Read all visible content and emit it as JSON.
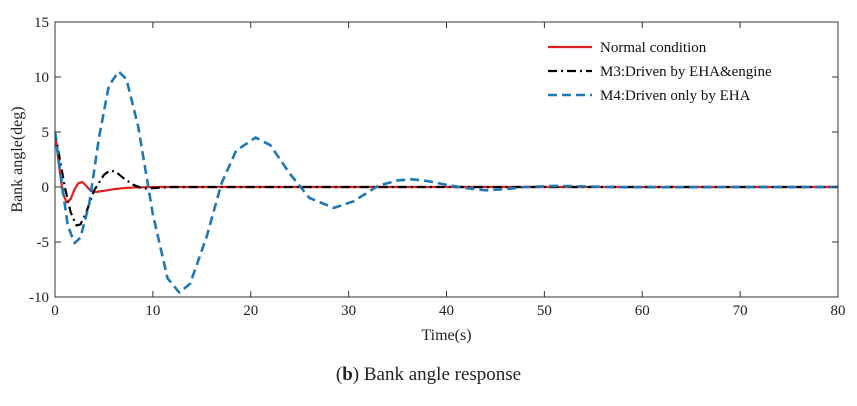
{
  "caption": {
    "label": "b",
    "text": ") Bank angle response"
  },
  "chart_data": {
    "type": "line",
    "title": "",
    "xlabel": "Time(s)",
    "ylabel": "Bank angle(deg)",
    "xlim": [
      0,
      80
    ],
    "ylim": [
      -10,
      15
    ],
    "xticks": [
      0,
      10,
      20,
      30,
      40,
      50,
      60,
      70,
      80
    ],
    "yticks": [
      -10,
      -5,
      0,
      5,
      10,
      15
    ],
    "grid": false,
    "legend_position": "top-right",
    "series": [
      {
        "name": "Normal condition",
        "color": "#e02020",
        "dash": "solid",
        "points": [
          [
            0,
            5
          ],
          [
            0.4,
            2
          ],
          [
            0.8,
            -0.6
          ],
          [
            1.2,
            -1.4
          ],
          [
            1.6,
            -1.1
          ],
          [
            2.0,
            -0.2
          ],
          [
            2.4,
            0.35
          ],
          [
            2.8,
            0.45
          ],
          [
            3.2,
            0.1
          ],
          [
            3.6,
            -0.3
          ],
          [
            4.2,
            -0.45
          ],
          [
            5,
            -0.35
          ],
          [
            6,
            -0.2
          ],
          [
            7,
            -0.1
          ],
          [
            8,
            -0.05
          ],
          [
            10,
            0
          ],
          [
            80,
            0
          ]
        ]
      },
      {
        "name": "M3:Driven by EHA&engine",
        "color": "#000000",
        "dash": "dashdot",
        "points": [
          [
            0,
            5
          ],
          [
            0.5,
            2.5
          ],
          [
            1,
            0
          ],
          [
            1.6,
            -2.3
          ],
          [
            2.2,
            -3.5
          ],
          [
            2.6,
            -3.4
          ],
          [
            3.2,
            -2.3
          ],
          [
            4,
            -0.3
          ],
          [
            5,
            1.1
          ],
          [
            5.6,
            1.5
          ],
          [
            6.2,
            1.4
          ],
          [
            7,
            0.8
          ],
          [
            8,
            0.2
          ],
          [
            9,
            -0.15
          ],
          [
            10,
            -0.1
          ],
          [
            12,
            0
          ],
          [
            80,
            0
          ]
        ]
      },
      {
        "name": "M4:Driven only by EHA",
        "color": "#1f77b4",
        "dash": "dashed",
        "points": [
          [
            0,
            5
          ],
          [
            0.6,
            1
          ],
          [
            1.3,
            -3.5
          ],
          [
            2.0,
            -5.1
          ],
          [
            2.6,
            -4.6
          ],
          [
            3.5,
            -1.5
          ],
          [
            4.5,
            4.5
          ],
          [
            5.5,
            9.2
          ],
          [
            6.5,
            10.5
          ],
          [
            7.3,
            9.8
          ],
          [
            8.5,
            5.5
          ],
          [
            10,
            -2.5
          ],
          [
            11.5,
            -8.3
          ],
          [
            12.7,
            -9.6
          ],
          [
            13.8,
            -8.8
          ],
          [
            15.5,
            -4.5
          ],
          [
            17,
            0.3
          ],
          [
            18.5,
            3.3
          ],
          [
            20.5,
            4.5
          ],
          [
            22,
            3.8
          ],
          [
            24,
            1.2
          ],
          [
            26,
            -1.0
          ],
          [
            28.5,
            -1.9
          ],
          [
            30.5,
            -1.3
          ],
          [
            33,
            0.1
          ],
          [
            35,
            0.6
          ],
          [
            36.5,
            0.7
          ],
          [
            38,
            0.55
          ],
          [
            40,
            0.2
          ],
          [
            42,
            -0.1
          ],
          [
            44,
            -0.3
          ],
          [
            46,
            -0.2
          ],
          [
            48,
            0
          ],
          [
            51,
            0.1
          ],
          [
            54,
            0.05
          ],
          [
            58,
            -0.02
          ],
          [
            80,
            0
          ]
        ]
      }
    ]
  }
}
